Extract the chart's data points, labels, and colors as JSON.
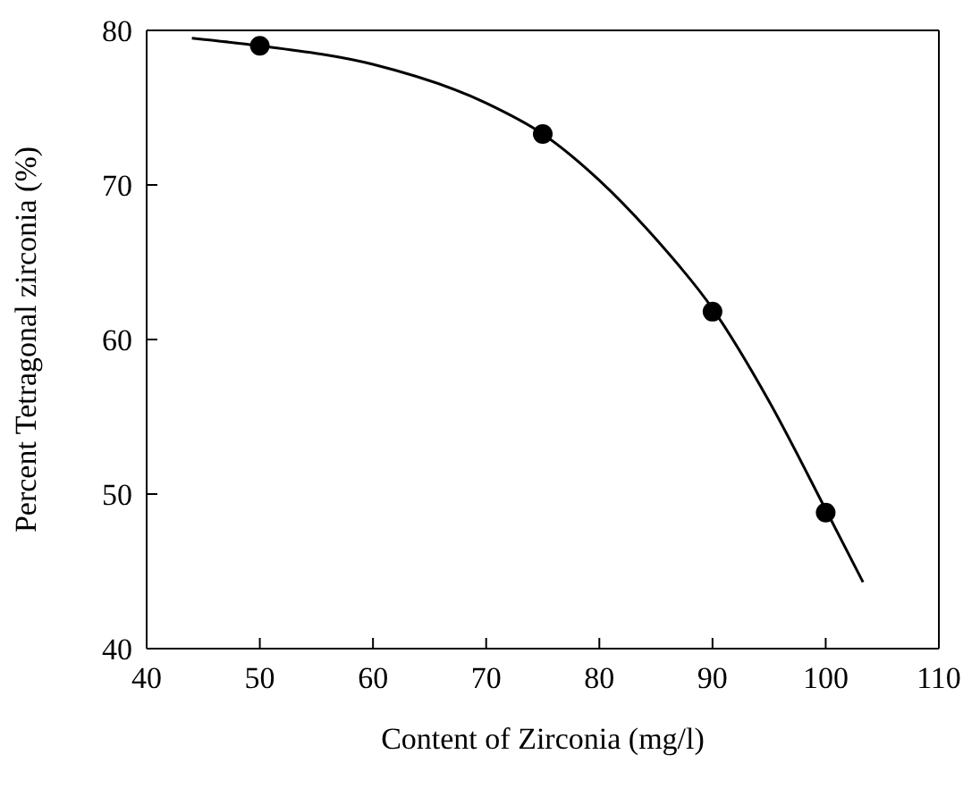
{
  "chart_data": {
    "type": "scatter",
    "xlabel": "Content of Zirconia (mg/l)",
    "ylabel": "Percent Tetragonal zirconia (%)",
    "xlim": [
      40,
      110
    ],
    "xticks": [
      40,
      50,
      60,
      70,
      80,
      90,
      100,
      110
    ],
    "ylim": [
      40,
      80
    ],
    "yticks": [
      40,
      50,
      60,
      70,
      80
    ],
    "marker": "circle",
    "series": [
      {
        "color": "#000000",
        "x": [
          50,
          75,
          90,
          100
        ],
        "values": [
          79,
          73.3,
          61.8,
          48.8
        ]
      },
      {
        "type": "line",
        "color": "#000000",
        "marker": "none",
        "line_style": "solid",
        "x": [
          44,
          50,
          60,
          70,
          75,
          80,
          85,
          90,
          95,
          100,
          103.3
        ],
        "values": [
          79.5,
          79,
          77.8,
          75.3,
          73.3,
          70.3,
          66.5,
          62,
          56,
          49,
          44.3
        ]
      }
    ]
  }
}
